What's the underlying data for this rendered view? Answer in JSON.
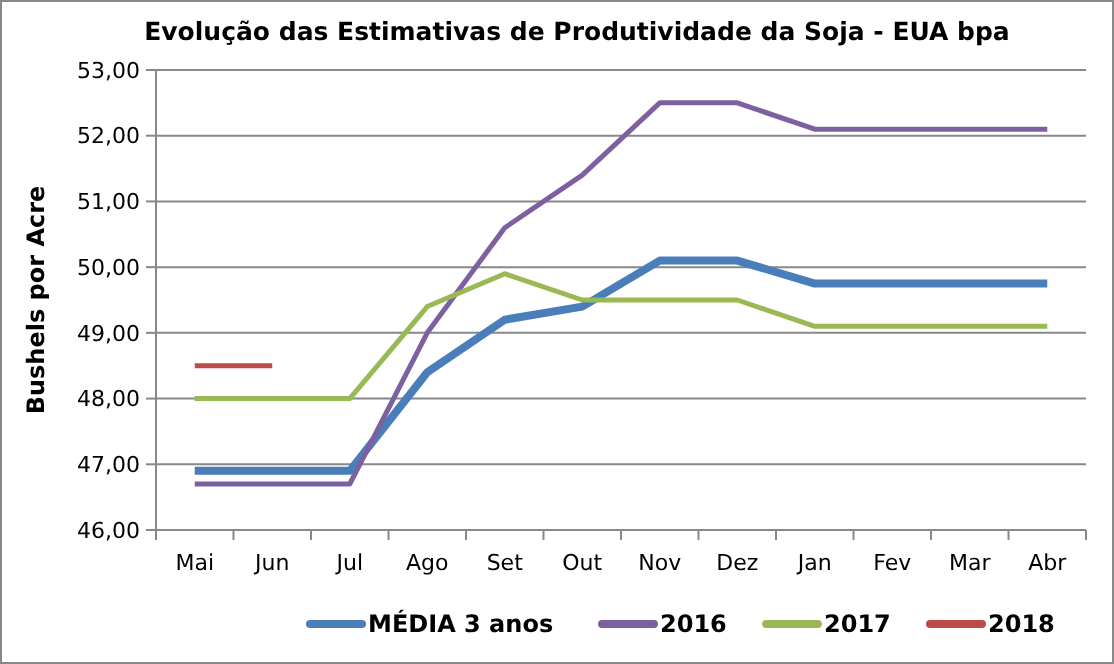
{
  "chart_data": {
    "type": "line",
    "title": "Evolução das Estimativas de Produtividade da Soja - EUA bpa",
    "ylabel": "Bushels por Acre",
    "categories": [
      "Mai",
      "Jun",
      "Jul",
      "Ago",
      "Set",
      "Out",
      "Nov",
      "Dez",
      "Jan",
      "Fev",
      "Mar",
      "Abr"
    ],
    "series": [
      {
        "name": "MÉDIA 3 anos",
        "color": "#4a7ebb",
        "values": [
          46.9,
          46.9,
          46.9,
          48.4,
          49.2,
          49.4,
          50.1,
          50.1,
          49.75,
          49.75,
          49.75,
          49.75
        ]
      },
      {
        "name": "2016",
        "color": "#7d60a0",
        "values": [
          46.7,
          46.7,
          46.7,
          49.0,
          50.6,
          51.4,
          52.5,
          52.5,
          52.1,
          52.1,
          52.1,
          52.1
        ]
      },
      {
        "name": "2017",
        "color": "#98b954",
        "values": [
          48.0,
          48.0,
          48.0,
          49.4,
          49.9,
          49.5,
          49.5,
          49.5,
          49.1,
          49.1,
          49.1,
          49.1
        ]
      },
      {
        "name": "2018",
        "color": "#be4b48",
        "values": [
          48.5,
          48.5,
          null,
          null,
          null,
          null,
          null,
          null,
          null,
          null,
          null,
          null
        ]
      }
    ],
    "ylim": [
      46,
      53
    ],
    "yticks": [
      {
        "value": 46,
        "label": "46,00"
      },
      {
        "value": 47,
        "label": "47,00"
      },
      {
        "value": 48,
        "label": "48,00"
      },
      {
        "value": 49,
        "label": "49,00"
      },
      {
        "value": 50,
        "label": "50,00"
      },
      {
        "value": 51,
        "label": "51,00"
      },
      {
        "value": 52,
        "label": "52,00"
      },
      {
        "value": 53,
        "label": "53,00"
      }
    ],
    "grid": "y",
    "legend": "bottom",
    "marker": "none",
    "line_style": "solid"
  }
}
